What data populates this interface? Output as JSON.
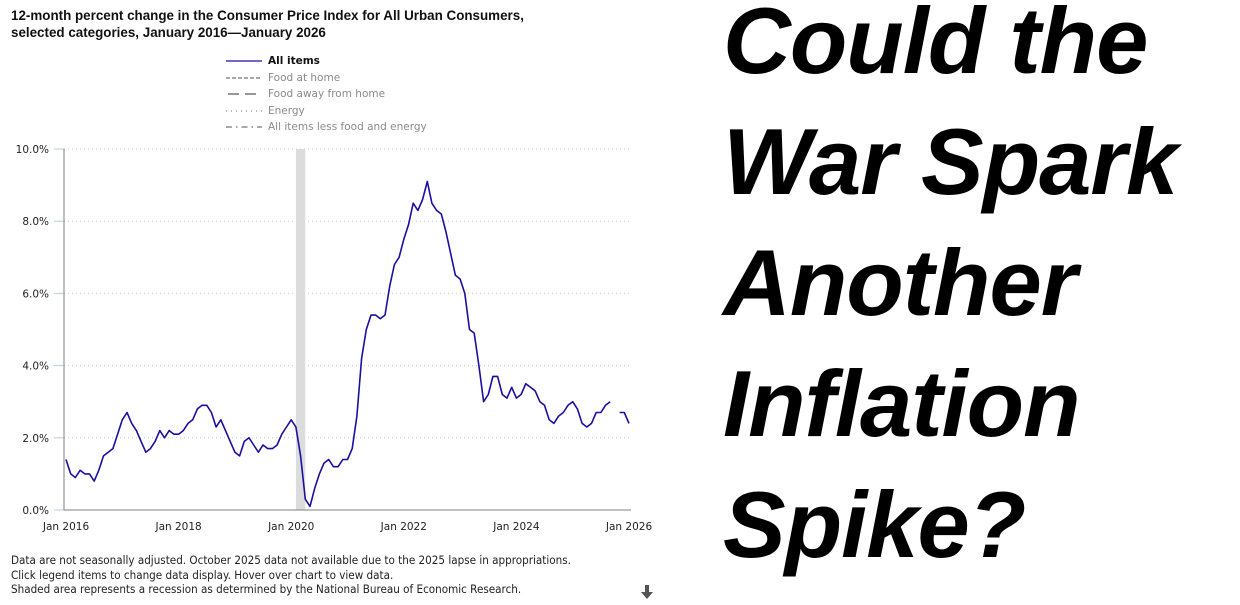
{
  "headline": {
    "lines": [
      "Could the",
      "War Spark",
      "Another",
      "Inflation",
      "Spike?"
    ]
  },
  "footnote": {
    "lines": [
      "Data are not seasonally adjusted. October 2025 data not available due to the 2025 lapse in appropriations.",
      "Click legend items to change data display. Hover over chart to view data.",
      "Shaded area represents a recession as determined by the National Bureau of Economic Research."
    ],
    "scroll_icon": "down-arrow-icon"
  },
  "colors": {
    "all_items": "#1a0fa0",
    "inactive_legend": "#8a8a8a",
    "recession": "#dcdcdc",
    "grid": "#c8c8c8",
    "axis": "#808080"
  },
  "chart_data": {
    "type": "line",
    "title": "12-month percent change in the Consumer Price Index for All Urban Consumers, selected categories, January 2016—January 2026",
    "title_lines": [
      "12-month percent change in the Consumer Price Index for All Urban Consumers,",
      "selected categories, January 2016—January 2026"
    ],
    "xlabel": "",
    "ylabel": "",
    "ylim": [
      0,
      10
    ],
    "yticks": [
      0,
      2,
      4,
      6,
      8,
      10
    ],
    "ytick_labels": [
      "0.0%",
      "2.0%",
      "4.0%",
      "6.0%",
      "8.0%",
      "10.0%"
    ],
    "xticks": [
      "Jan 2016",
      "Jan 2018",
      "Jan 2020",
      "Jan 2022",
      "Jan 2024",
      "Jan 2026"
    ],
    "x_start": "2016-01",
    "x_end": "2026-01",
    "grid": "horizontal dotted",
    "legend_position": "top-center",
    "legend": [
      {
        "name": "All items",
        "style": "solid",
        "active": true
      },
      {
        "name": "Food at home",
        "style": "short-dash",
        "active": false
      },
      {
        "name": "Food away from home",
        "style": "long-dash",
        "active": false
      },
      {
        "name": "Energy",
        "style": "dotted",
        "active": false
      },
      {
        "name": "All items less food and energy",
        "style": "dash-dot",
        "active": false
      }
    ],
    "recession": {
      "start": "2020-02",
      "end": "2020-04",
      "label": "Recession (NBER)"
    },
    "series": [
      {
        "name": "All items",
        "frequency": "monthly",
        "start": "2016-01",
        "values": [
          1.4,
          1.0,
          0.9,
          1.1,
          1.0,
          1.0,
          0.8,
          1.1,
          1.5,
          1.6,
          1.7,
          2.1,
          2.5,
          2.7,
          2.4,
          2.2,
          1.9,
          1.6,
          1.7,
          1.9,
          2.2,
          2.0,
          2.2,
          2.1,
          2.1,
          2.2,
          2.4,
          2.5,
          2.8,
          2.9,
          2.9,
          2.7,
          2.3,
          2.5,
          2.2,
          1.9,
          1.6,
          1.5,
          1.9,
          2.0,
          1.8,
          1.6,
          1.8,
          1.7,
          1.7,
          1.8,
          2.1,
          2.3,
          2.5,
          2.3,
          1.5,
          0.3,
          0.1,
          0.6,
          1.0,
          1.3,
          1.4,
          1.2,
          1.2,
          1.4,
          1.4,
          1.7,
          2.6,
          4.2,
          5.0,
          5.4,
          5.4,
          5.3,
          5.4,
          6.2,
          6.8,
          7.0,
          7.5,
          7.9,
          8.5,
          8.3,
          8.6,
          9.1,
          8.5,
          8.3,
          8.2,
          7.7,
          7.1,
          6.5,
          6.4,
          6.0,
          5.0,
          4.9,
          4.0,
          3.0,
          3.2,
          3.7,
          3.7,
          3.2,
          3.1,
          3.4,
          3.1,
          3.2,
          3.5,
          3.4,
          3.3,
          3.0,
          2.9,
          2.5,
          2.4,
          2.6,
          2.7,
          2.9,
          3.0,
          2.8,
          2.4,
          2.3,
          2.4,
          2.7,
          2.7,
          2.9,
          3.0,
          null,
          2.7,
          2.7,
          2.4
        ]
      }
    ]
  }
}
